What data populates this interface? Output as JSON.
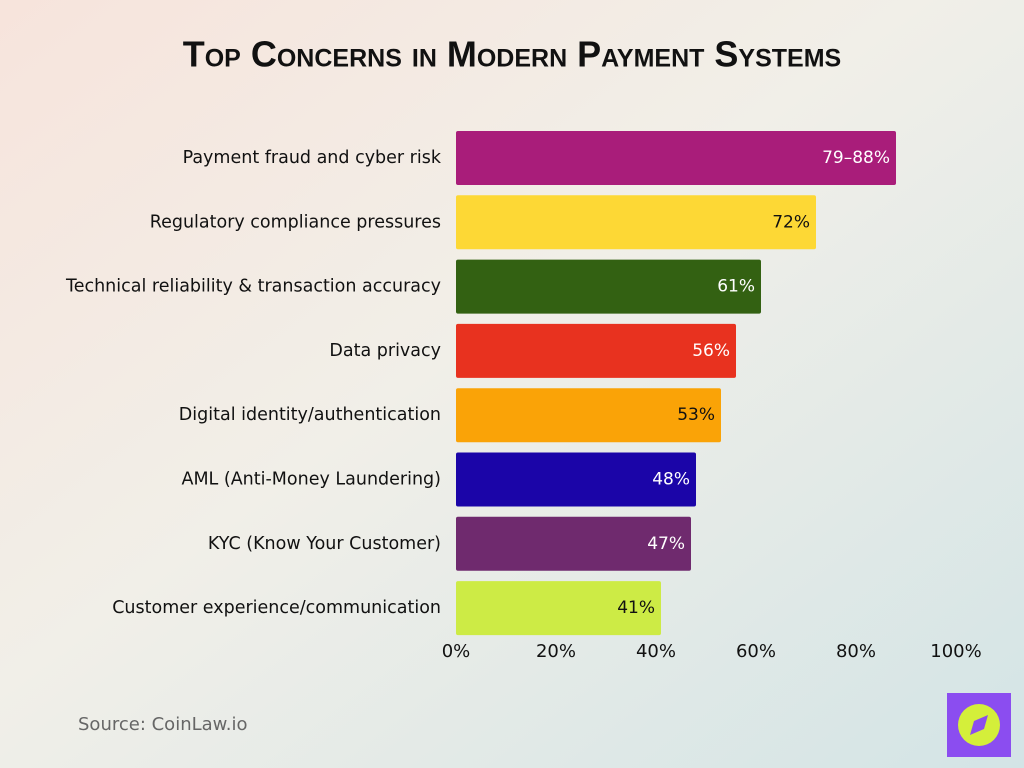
{
  "chart_data": {
    "type": "bar",
    "orientation": "horizontal",
    "title": "Top Concerns in Modern Payment Systems",
    "categories": [
      "Payment fraud and cyber risk",
      "Regulatory compliance pressures",
      "Technical reliability & transaction accuracy",
      "Data privacy",
      "Digital identity/authentication",
      "AML (Anti-Money Laundering)",
      "KYC (Know Your Customer)",
      "Customer experience/communication"
    ],
    "values": [
      88,
      72,
      61,
      56,
      53,
      48,
      47,
      41
    ],
    "value_labels": [
      "79–88%",
      "72%",
      "61%",
      "56%",
      "53%",
      "48%",
      "47%",
      "41%"
    ],
    "colors": [
      "#a91d7a",
      "#fdd835",
      "#336112",
      "#e8321f",
      "#faa307",
      "#1b05a8",
      "#6f2a6e",
      "#cdeb45"
    ],
    "xlim": [
      0,
      100
    ],
    "xticks": [
      {
        "value": 0,
        "label": "0%"
      },
      {
        "value": 20,
        "label": "20%"
      },
      {
        "value": 40,
        "label": "40%"
      },
      {
        "value": 60,
        "label": "60%"
      },
      {
        "value": 80,
        "label": "80%"
      },
      {
        "value": 100,
        "label": "100%"
      }
    ],
    "source": "Source: CoinLaw.io"
  }
}
